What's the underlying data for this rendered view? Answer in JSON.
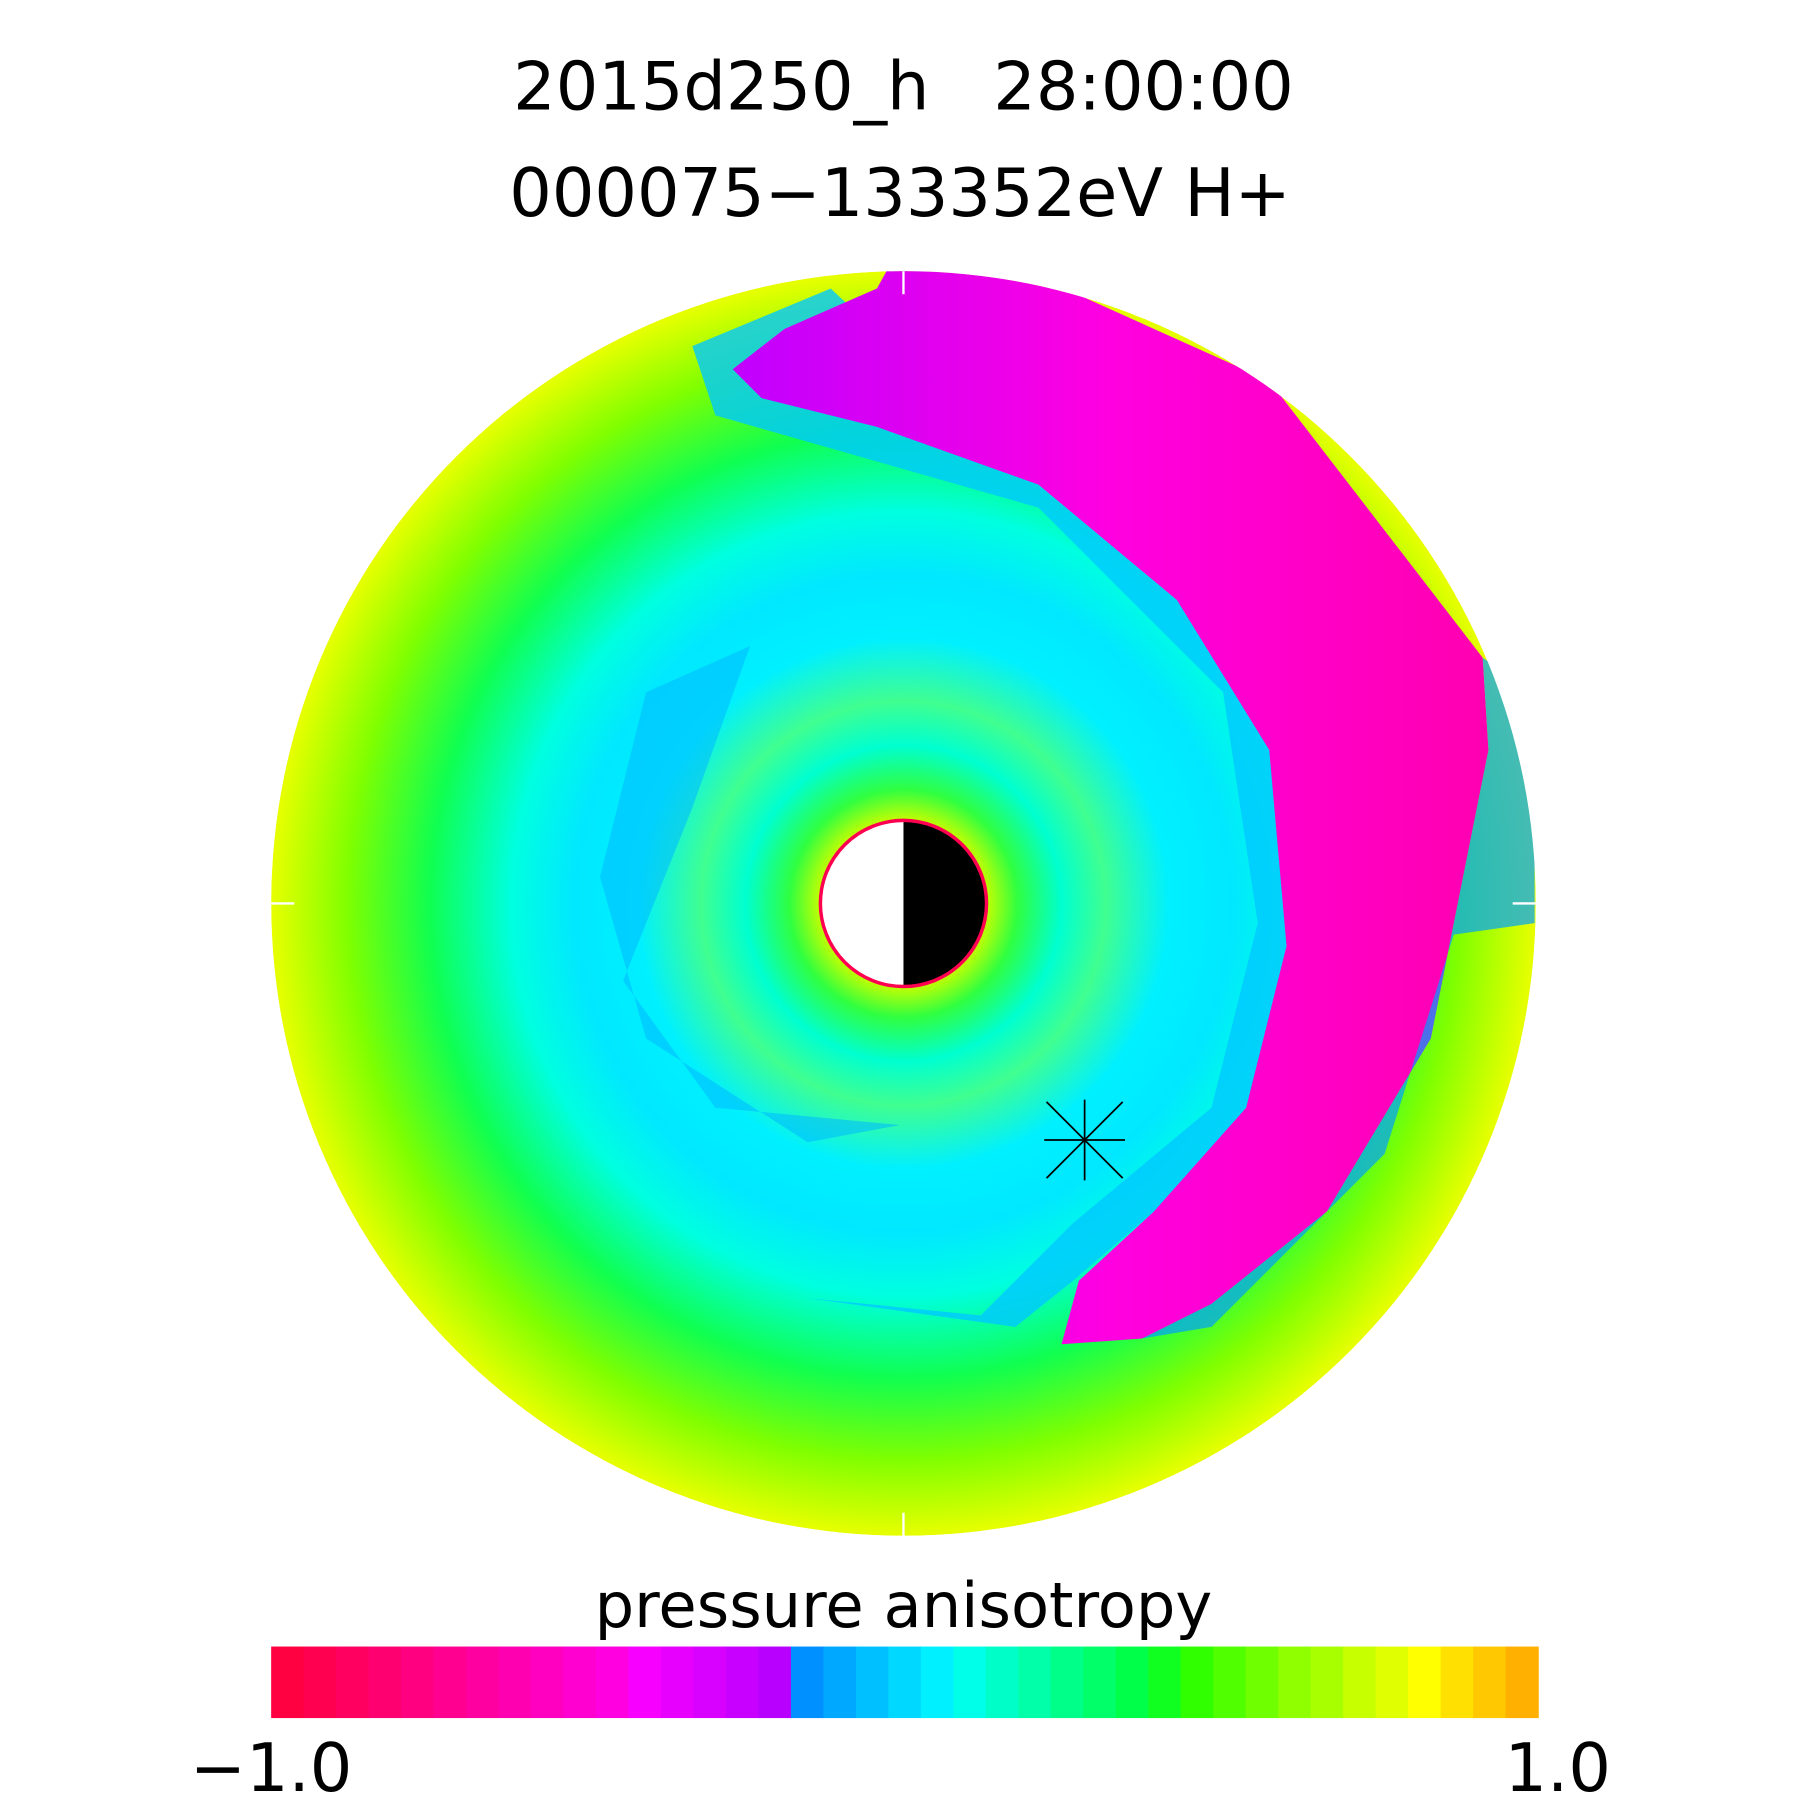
{
  "chart_data": {
    "type": "heatmap",
    "projection": "polar equatorial plane",
    "title_line1": "2015d250_h   28:00:00",
    "title_line2": "000075−133352eV H+",
    "colorbar": {
      "label": "pressure anisotropy",
      "range": [
        -1.0,
        1.0
      ],
      "min_label": "−1.0",
      "max_label": "1.0",
      "colors": [
        "#ff0040",
        "#ff0050",
        "#ff0060",
        "#ff0070",
        "#ff0080",
        "#ff0090",
        "#ff00a0",
        "#ff00b0",
        "#ff00c0",
        "#ff00d0",
        "#ff00e0",
        "#f800ff",
        "#e800ff",
        "#d800ff",
        "#c800ff",
        "#b800ff",
        "#0090ff",
        "#00a8ff",
        "#00c0ff",
        "#00d8ff",
        "#00f0ff",
        "#00ffe8",
        "#00ffc8",
        "#00ffa8",
        "#00ff88",
        "#00ff68",
        "#00ff48",
        "#10ff20",
        "#30ff00",
        "#50ff00",
        "#70ff00",
        "#90ff00",
        "#a8ff00",
        "#c8ff00",
        "#e0ff00",
        "#ffff00",
        "#ffe000",
        "#ffc800",
        "#ffb000"
      ]
    },
    "markers": {
      "earth": "day/night disc at center",
      "satellite": "asterisk"
    }
  }
}
